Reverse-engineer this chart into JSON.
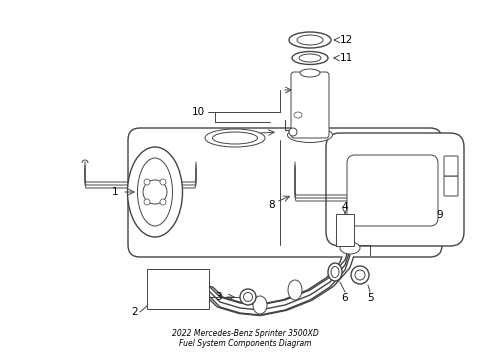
{
  "bg_color": "#ffffff",
  "line_color": "#444444",
  "label_color": "#000000",
  "figsize": [
    4.9,
    3.6
  ],
  "dpi": 100,
  "title": "2022 Mercedes-Benz Sprinter 3500XD\nFuel System Components Diagram"
}
